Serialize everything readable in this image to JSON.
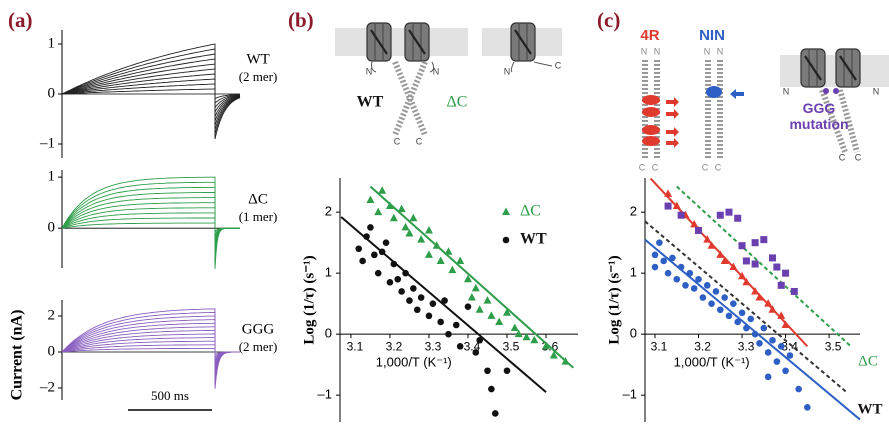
{
  "chart_data": [
    {
      "type": "trace",
      "label": "(a)",
      "title": "WT",
      "subtitle": "(2 mer)",
      "ylim": [
        -1.28,
        1.28
      ],
      "yticks": [
        1,
        0,
        {
          "value": -1,
          "label": "–1"
        }
      ],
      "series": [
        {
          "color": "#222222",
          "values": [
            0.1,
            0.2,
            0.3,
            0.4,
            0.5,
            0.6,
            0.7,
            0.8,
            0.9,
            1.0
          ]
        }
      ]
    },
    {
      "type": "trace",
      "title": "ΔC",
      "subtitle": "(1 mer)",
      "ylim": [
        -0.78,
        1.14
      ],
      "yticks": [
        1,
        0
      ],
      "series": [
        {
          "color": "#2e9e4a",
          "values": [
            0.1,
            0.2,
            0.3,
            0.4,
            0.5,
            0.6,
            0.7,
            0.8,
            0.9,
            1.0
          ]
        }
      ]
    },
    {
      "type": "trace",
      "title": "GGG",
      "subtitle": "(2 mer)",
      "ylabel": "Current (nA)",
      "scale_bar": "500 ms",
      "ylim": [
        -2.67,
        2.89
      ],
      "yticks": [
        2,
        0,
        {
          "value": -2,
          "label": "–2"
        }
      ],
      "series": [
        {
          "color": "#8a5fc0",
          "values": [
            0.2,
            0.4,
            0.6,
            0.8,
            1.0,
            1.2,
            1.4,
            1.6,
            1.8,
            2.0,
            2.2,
            2.4
          ]
        }
      ]
    },
    {
      "type": "scatter",
      "label": "(b)",
      "xlabel": "1,000/T (K⁻¹)",
      "ylabel": "Log (1/τ) (s⁻¹)",
      "xlim": [
        3.072,
        3.682
      ],
      "ylim": [
        -1.44,
        2.56
      ],
      "xticks": [
        3.1,
        3.2,
        3.3,
        3.4,
        3.5,
        3.6
      ],
      "yticks": [
        {
          "value": -1,
          "label": "–1"
        },
        0,
        1,
        2
      ],
      "legend": "upper right",
      "annotations": [
        {
          "text": "N",
          "color": "#444444"
        },
        {
          "text": "N",
          "color": "#444444"
        },
        {
          "text": "C",
          "color": "#444444"
        },
        {
          "text": "C",
          "color": "#444444"
        },
        {
          "text": "WT",
          "color": "#111111"
        },
        {
          "text": "ΔC",
          "color": "#2e9e4a"
        },
        {
          "text": "N",
          "color": "#444444"
        },
        {
          "text": "C",
          "color": "#444444"
        }
      ],
      "series": [
        {
          "name": "ΔC",
          "color": "#2e9e4a",
          "marker": "triangle",
          "x": [
            3.15,
            3.17,
            3.18,
            3.2,
            3.21,
            3.23,
            3.24,
            3.25,
            3.26,
            3.28,
            3.3,
            3.3,
            3.32,
            3.33,
            3.35,
            3.36,
            3.38,
            3.4,
            3.41,
            3.42,
            3.43,
            3.45,
            3.46,
            3.48,
            3.5,
            3.52,
            3.53,
            3.55,
            3.57,
            3.6,
            3.62,
            3.65
          ],
          "values": [
            2.2,
            2.0,
            2.35,
            2.1,
            1.9,
            2.05,
            1.75,
            1.65,
            1.9,
            1.55,
            1.7,
            1.3,
            1.45,
            1.2,
            1.35,
            1.05,
            1.2,
            0.9,
            0.6,
            0.75,
            0.4,
            0.55,
            0.3,
            0.2,
            0.35,
            0.1,
            0.0,
            -0.05,
            -0.1,
            -0.2,
            -0.35,
            -0.45
          ]
        },
        {
          "name": "WT",
          "color": "#111111",
          "marker": "circle",
          "x": [
            3.12,
            3.13,
            3.14,
            3.15,
            3.16,
            3.17,
            3.18,
            3.19,
            3.2,
            3.21,
            3.22,
            3.23,
            3.24,
            3.25,
            3.26,
            3.27,
            3.28,
            3.3,
            3.31,
            3.33,
            3.34,
            3.35,
            3.37,
            3.38,
            3.4,
            3.42,
            3.43,
            3.45,
            3.46,
            3.47,
            3.5
          ],
          "values": [
            1.4,
            1.2,
            1.6,
            1.75,
            1.3,
            1.0,
            1.35,
            1.5,
            0.85,
            1.15,
            0.9,
            0.7,
            1.0,
            0.55,
            0.75,
            0.4,
            0.6,
            0.3,
            0.5,
            0.2,
            0.55,
            0.0,
            0.15,
            -0.2,
            0.45,
            -0.3,
            -0.1,
            -0.6,
            -0.9,
            -1.3,
            -0.6
          ]
        }
      ],
      "fits": [
        {
          "color": "#2e9e4a",
          "x": [
            3.15,
            3.67
          ],
          "values": [
            2.42,
            -0.55
          ]
        },
        {
          "color": "#111111",
          "x": [
            3.075,
            3.6
          ],
          "values": [
            1.92,
            -0.95
          ]
        }
      ]
    },
    {
      "type": "scatter",
      "label": "(c)",
      "xlabel": "1,000/T (K⁻¹)",
      "ylabel": "Log (1/τ) (s⁻¹)",
      "xlim": [
        3.077,
        3.571
      ],
      "ylim": [
        -1.44,
        2.56
      ],
      "xticks": [
        3.1,
        3.2,
        3.3,
        3.4,
        3.5
      ],
      "yticks": [
        {
          "value": -1,
          "label": "–1"
        },
        0,
        1,
        2
      ],
      "annotations": [
        {
          "text": "N",
          "color": "#888888"
        },
        {
          "text": "N",
          "color": "#888888"
        },
        {
          "text": "N",
          "color": "#888888"
        },
        {
          "text": "N",
          "color": "#888888"
        },
        {
          "text": "C",
          "color": "#888888"
        },
        {
          "text": "C",
          "color": "#888888"
        },
        {
          "text": "C",
          "color": "#888888"
        },
        {
          "text": "C",
          "color": "#888888"
        },
        {
          "text": "N",
          "color": "#444444"
        },
        {
          "text": "N",
          "color": "#444444"
        },
        {
          "text": "C",
          "color": "#444444"
        },
        {
          "text": "C",
          "color": "#444444"
        },
        {
          "text": "ΔC",
          "color": "#2e9e4a"
        },
        {
          "text": "WT",
          "color": "#111111"
        }
      ],
      "series": [
        {
          "name": "4R",
          "color": "#e03a2f",
          "marker": "triangle",
          "x": [
            3.13,
            3.15,
            3.17,
            3.19,
            3.2,
            3.22,
            3.23,
            3.25,
            3.26,
            3.28,
            3.3,
            3.31,
            3.33,
            3.34,
            3.36,
            3.37,
            3.39,
            3.4
          ],
          "values": [
            2.3,
            2.1,
            1.95,
            1.8,
            1.7,
            1.55,
            1.45,
            1.3,
            1.2,
            1.1,
            0.95,
            0.85,
            0.7,
            0.6,
            0.5,
            0.4,
            0.3,
            0.15
          ]
        },
        {
          "name": "NIN",
          "color": "#2d5fc4",
          "marker": "circle",
          "x": [
            3.1,
            3.1,
            3.11,
            3.12,
            3.13,
            3.14,
            3.15,
            3.16,
            3.17,
            3.18,
            3.19,
            3.2,
            3.21,
            3.22,
            3.23,
            3.24,
            3.25,
            3.26,
            3.27,
            3.28,
            3.29,
            3.3,
            3.31,
            3.32,
            3.33,
            3.34,
            3.35,
            3.36,
            3.37,
            3.38,
            3.39,
            3.4,
            3.41,
            3.43,
            3.45,
            3.36
          ],
          "values": [
            1.3,
            1.1,
            1.5,
            1.2,
            1.0,
            1.25,
            0.9,
            1.1,
            0.8,
            1.0,
            0.75,
            0.9,
            0.6,
            0.8,
            0.5,
            0.7,
            0.4,
            0.6,
            0.3,
            0.5,
            0.2,
            0.35,
            0.1,
            0.25,
            0.0,
            -0.15,
            0.1,
            -0.3,
            -0.1,
            -0.45,
            -0.2,
            -0.6,
            -0.35,
            -0.9,
            -1.2,
            -0.7
          ]
        },
        {
          "name": "GGG mutation",
          "color": "#6a3fb0",
          "marker": "square",
          "x": [
            3.13,
            3.16,
            3.2,
            3.25,
            3.27,
            3.29,
            3.3,
            3.31,
            3.33,
            3.35,
            3.37,
            3.38,
            3.39,
            3.4,
            3.42,
            3.33
          ],
          "values": [
            2.1,
            1.95,
            1.7,
            1.95,
            2.0,
            1.9,
            1.45,
            1.2,
            1.5,
            1.55,
            1.25,
            1.1,
            0.8,
            1.0,
            0.7,
            1.15
          ]
        }
      ],
      "fits": [
        {
          "color": "#e03a2f",
          "x": [
            3.09,
            3.45
          ],
          "values": [
            2.55,
            -0.2
          ]
        },
        {
          "color": "#2d5fc4",
          "x": [
            3.077,
            3.571
          ],
          "values": [
            1.55,
            -1.4
          ]
        },
        {
          "color": "#2e9e4a",
          "dash": true,
          "x": [
            3.15,
            3.55
          ],
          "values": [
            2.42,
            -0.2
          ]
        },
        {
          "color": "#333333",
          "dash": true,
          "x": [
            3.077,
            3.54
          ],
          "values": [
            1.85,
            -0.95
          ]
        }
      ]
    }
  ]
}
